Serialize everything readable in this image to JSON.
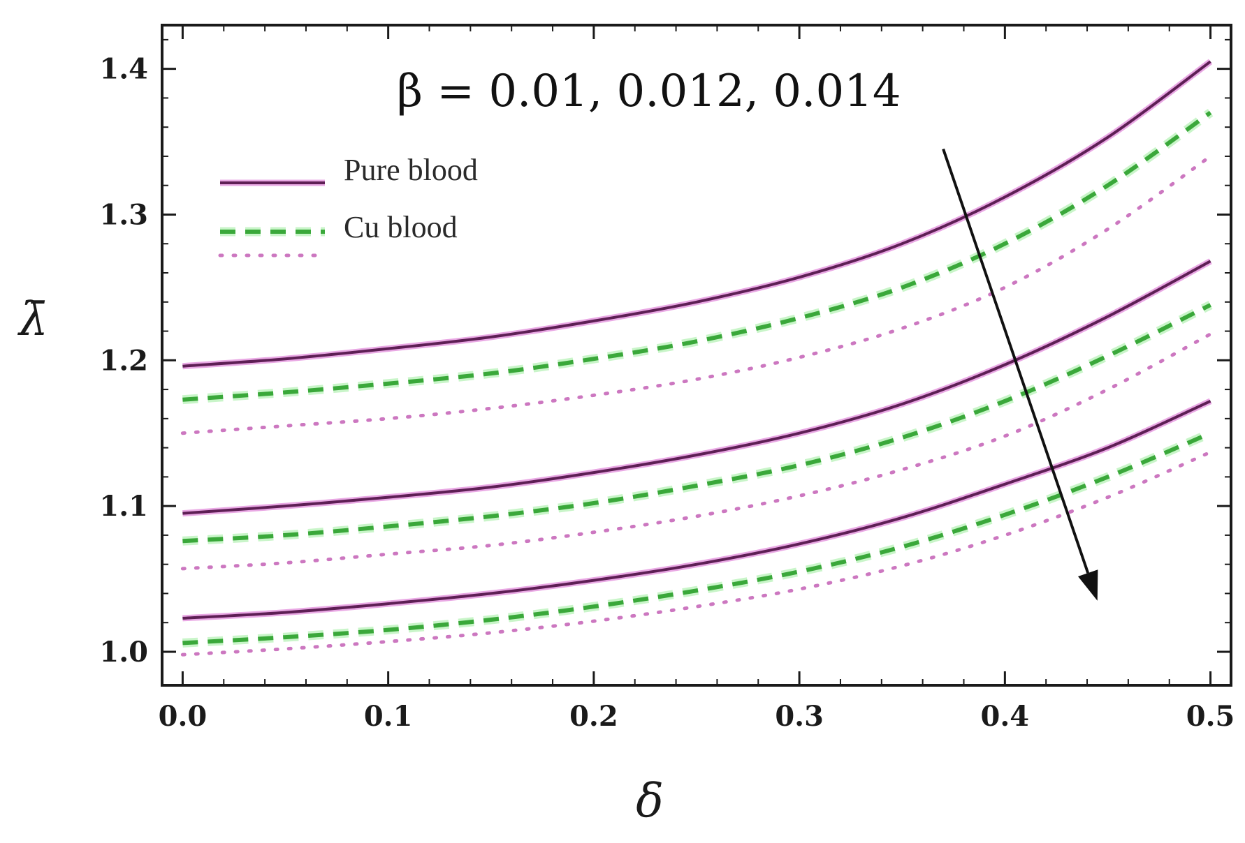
{
  "chart_data": {
    "type": "line",
    "title": "",
    "xlabel": "δ",
    "ylabel": "λ̄",
    "xlim": [
      -0.01,
      0.51
    ],
    "ylim": [
      0.977,
      1.43
    ],
    "x_ticks": [
      {
        "value": 0.0,
        "label": "0.0"
      },
      {
        "value": 0.1,
        "label": "0.1"
      },
      {
        "value": 0.2,
        "label": "0.2"
      },
      {
        "value": 0.3,
        "label": "0.3"
      },
      {
        "value": 0.4,
        "label": "0.4"
      },
      {
        "value": 0.5,
        "label": "0.5"
      }
    ],
    "y_ticks": [
      {
        "value": 1.0,
        "label": "1.0"
      },
      {
        "value": 1.1,
        "label": "1.1"
      },
      {
        "value": 1.2,
        "label": "1.2"
      },
      {
        "value": 1.3,
        "label": "1.3"
      },
      {
        "value": 1.4,
        "label": "1.4"
      }
    ],
    "grid": false,
    "legend_position": "top-left",
    "legend": [
      {
        "label": "Pure blood",
        "style": "solid",
        "color": "#5e1f55"
      },
      {
        "label": "Cu blood",
        "style": "dashed",
        "color": "#3aa83a"
      },
      {
        "label": "",
        "style": "dotted",
        "color": "#cc77c0"
      }
    ],
    "annotation": {
      "text": "β = 0.01, 0.012, 0.014",
      "arrow_from": [
        0.37,
        1.345
      ],
      "arrow_to": [
        0.445,
        1.035
      ]
    },
    "x": [
      0.0,
      0.05,
      0.1,
      0.15,
      0.2,
      0.25,
      0.3,
      0.35,
      0.4,
      0.45,
      0.5
    ],
    "series": [
      {
        "style": "solid",
        "group": 1,
        "values": [
          1.196,
          1.201,
          1.208,
          1.216,
          1.227,
          1.24,
          1.257,
          1.28,
          1.312,
          1.353,
          1.405
        ]
      },
      {
        "style": "dashed",
        "group": 1,
        "values": [
          1.173,
          1.178,
          1.184,
          1.191,
          1.201,
          1.213,
          1.229,
          1.25,
          1.28,
          1.32,
          1.37
        ]
      },
      {
        "style": "dotted",
        "group": 1,
        "values": [
          1.15,
          1.155,
          1.16,
          1.167,
          1.176,
          1.187,
          1.202,
          1.222,
          1.25,
          1.29,
          1.34
        ]
      },
      {
        "style": "solid",
        "group": 2,
        "values": [
          1.095,
          1.1,
          1.106,
          1.113,
          1.123,
          1.135,
          1.15,
          1.17,
          1.197,
          1.23,
          1.268
        ]
      },
      {
        "style": "dashed",
        "group": 2,
        "values": [
          1.076,
          1.08,
          1.086,
          1.093,
          1.102,
          1.114,
          1.128,
          1.147,
          1.172,
          1.203,
          1.238
        ]
      },
      {
        "style": "dotted",
        "group": 2,
        "values": [
          1.057,
          1.061,
          1.067,
          1.073,
          1.082,
          1.093,
          1.107,
          1.125,
          1.148,
          1.18,
          1.218
        ]
      },
      {
        "style": "solid",
        "group": 3,
        "values": [
          1.023,
          1.027,
          1.033,
          1.04,
          1.049,
          1.06,
          1.074,
          1.092,
          1.115,
          1.14,
          1.172
        ]
      },
      {
        "style": "dashed",
        "group": 3,
        "values": [
          1.006,
          1.01,
          1.015,
          1.022,
          1.031,
          1.042,
          1.055,
          1.072,
          1.094,
          1.12,
          1.15
        ]
      },
      {
        "style": "dotted",
        "group": 3,
        "values": [
          0.998,
          1.002,
          1.007,
          1.013,
          1.021,
          1.031,
          1.043,
          1.059,
          1.08,
          1.106,
          1.137
        ]
      }
    ],
    "colors": {
      "solid": "#5e1f55",
      "solid_halo": "#e9a8e4",
      "dashed": "#3aa83a",
      "dashed_halo": "#c9f5c9",
      "dotted": "#cc77c0",
      "frame": "#1a1a1a",
      "arrow": "#111111"
    }
  }
}
